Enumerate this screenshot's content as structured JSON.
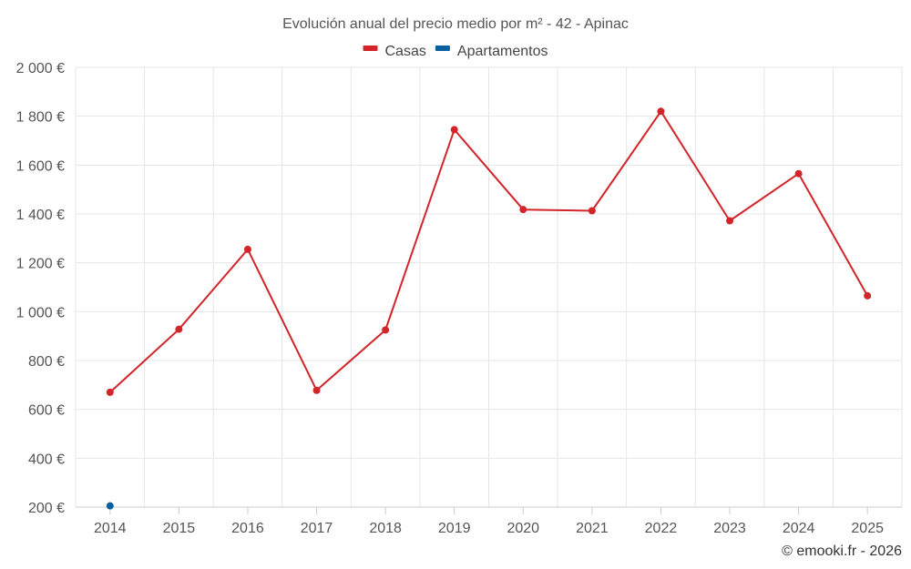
{
  "chart_data": {
    "type": "line",
    "title": "Evolución anual del precio medio por m² - 42 - Apinac",
    "categories": [
      "2014",
      "2015",
      "2016",
      "2017",
      "2018",
      "2019",
      "2020",
      "2021",
      "2022",
      "2023",
      "2024",
      "2025"
    ],
    "series": [
      {
        "name": "Casas",
        "color": "#d3242a",
        "values": [
          670,
          928,
          1255,
          678,
          925,
          1745,
          1418,
          1413,
          1820,
          1372,
          1565,
          1065
        ]
      },
      {
        "name": "Apartamentos",
        "color": "#0a5f9e",
        "values": [
          205,
          null,
          null,
          null,
          null,
          null,
          null,
          null,
          null,
          null,
          null,
          null
        ]
      }
    ],
    "ylim": [
      200,
      2000
    ],
    "yticks": [
      200,
      400,
      600,
      800,
      1000,
      1200,
      1400,
      1600,
      1800,
      2000
    ],
    "ytick_labels": [
      "200 €",
      "400 €",
      "600 €",
      "800 €",
      "1 000 €",
      "1 200 €",
      "1 400 €",
      "1 600 €",
      "1 800 €",
      "2 000 €"
    ],
    "grid": true,
    "legend_position": "top-center"
  },
  "credit": "© emooki.fr - 2026"
}
